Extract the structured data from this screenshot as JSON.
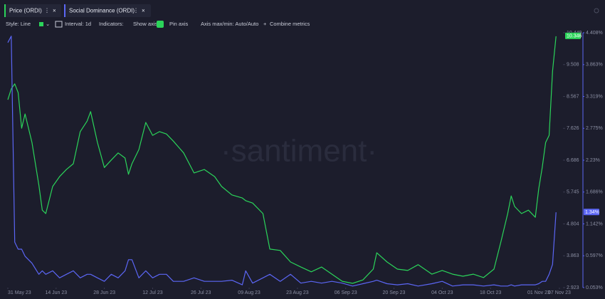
{
  "tabs": [
    "Price (ORDI)",
    "Social Dominance (ORDI)"
  ],
  "toolbar": {
    "style": "Style: Line",
    "interval": "Interval: 1d",
    "indicators": "Indicators:",
    "show_axis": "Show axis",
    "pin_axis": "Pin axis",
    "axis_maxmin": "Axis max/min: Auto/Auto",
    "combine": "Combine metrics"
  },
  "watermark": "·santiment·",
  "chart_data": {
    "type": "line",
    "x": [
      "31 May 23",
      "01 Jun 23",
      "02 Jun 23",
      "03 Jun 23",
      "04 Jun 23",
      "05 Jun 23",
      "07 Jun 23",
      "09 Jun 23",
      "10 Jun 23",
      "11 Jun 23",
      "13 Jun 23",
      "15 Jun 23",
      "17 Jun 23",
      "19 Jun 23",
      "21 Jun 23",
      "23 Jun 23",
      "24 Jun 23",
      "26 Jun 23",
      "28 Jun 23",
      "30 Jun 23",
      "02 Jul 23",
      "04 Jul 23",
      "05 Jul 23",
      "06 Jul 23",
      "08 Jul 23",
      "10 Jul 23",
      "12 Jul 23",
      "14 Jul 23",
      "16 Jul 23",
      "18 Jul 23",
      "21 Jul 23",
      "24 Jul 23",
      "27 Jul 23",
      "30 Jul 23",
      "01 Aug 23",
      "04 Aug 23",
      "07 Aug 23",
      "08 Aug 23",
      "10 Aug 23",
      "13 Aug 23",
      "15 Aug 23",
      "18 Aug 23",
      "21 Aug 23",
      "24 Aug 23",
      "27 Aug 23",
      "30 Aug 23",
      "02 Sep 23",
      "05 Sep 23",
      "08 Sep 23",
      "11 Sep 23",
      "14 Sep 23",
      "15 Sep 23",
      "18 Sep 23",
      "21 Sep 23",
      "24 Sep 23",
      "27 Sep 23",
      "01 Oct 23",
      "04 Oct 23",
      "07 Oct 23",
      "10 Oct 23",
      "13 Oct 23",
      "16 Oct 23",
      "19 Oct 23",
      "21 Oct 23",
      "23 Oct 23",
      "24 Oct 23",
      "25 Oct 23",
      "27 Oct 23",
      "29 Oct 23",
      "31 Oct 23",
      "01 Nov 23",
      "02 Nov 23",
      "03 Nov 23",
      "04 Nov 23",
      "05 Nov 23",
      "06 Nov 23"
    ],
    "series": [
      {
        "name": "Price (ORDI)",
        "color": "#2bd45a",
        "axis": "y",
        "values": [
          8.47,
          8.79,
          8.94,
          8.68,
          7.63,
          8.05,
          7.21,
          5.95,
          5.21,
          5.11,
          5.91,
          6.2,
          6.41,
          6.58,
          7.53,
          7.84,
          8.12,
          7.21,
          6.47,
          6.69,
          6.9,
          6.75,
          6.27,
          6.58,
          7.0,
          7.8,
          7.42,
          7.53,
          7.46,
          7.25,
          6.9,
          6.31,
          6.41,
          6.2,
          5.91,
          5.66,
          5.57,
          5.49,
          5.42,
          5.11,
          4.06,
          4.02,
          3.68,
          3.53,
          3.39,
          3.53,
          3.32,
          3.11,
          3.05,
          3.15,
          3.47,
          3.95,
          3.68,
          3.47,
          3.43,
          3.6,
          3.32,
          3.43,
          3.32,
          3.26,
          3.32,
          3.22,
          3.47,
          4.27,
          5.11,
          5.63,
          5.32,
          5.11,
          5.21,
          5.0,
          5.84,
          6.47,
          7.21,
          7.42,
          9.31,
          10.346
        ]
      },
      {
        "name": "Social Dominance (ORDI)",
        "color": "#5b66f5",
        "axis": "y2",
        "values": [
          4.24,
          4.35,
          0.83,
          0.71,
          0.71,
          0.59,
          0.47,
          0.28,
          0.34,
          0.28,
          0.34,
          0.22,
          0.28,
          0.34,
          0.22,
          0.28,
          0.28,
          0.22,
          0.16,
          0.28,
          0.22,
          0.34,
          0.53,
          0.53,
          0.22,
          0.34,
          0.22,
          0.28,
          0.28,
          0.16,
          0.16,
          0.22,
          0.16,
          0.16,
          0.16,
          0.18,
          0.1,
          0.34,
          0.13,
          0.22,
          0.28,
          0.16,
          0.28,
          0.13,
          0.16,
          0.13,
          0.16,
          0.13,
          0.08,
          0.12,
          0.16,
          0.18,
          0.12,
          0.1,
          0.12,
          0.08,
          0.12,
          0.16,
          0.08,
          0.1,
          0.1,
          0.08,
          0.1,
          0.08,
          0.08,
          0.1,
          0.08,
          0.1,
          0.1,
          0.1,
          0.12,
          0.16,
          0.16,
          0.28,
          0.45,
          1.34
        ],
        "value_labels": [
          null,
          null,
          null,
          null,
          null,
          null,
          null,
          null,
          null,
          null,
          null,
          null,
          null,
          null,
          null,
          null,
          null,
          null,
          null,
          null,
          null,
          null,
          null,
          null,
          null,
          null,
          null,
          null,
          null,
          null,
          null,
          null,
          null,
          null,
          null,
          null,
          null,
          null,
          null,
          null,
          null,
          null,
          null,
          null,
          null,
          null,
          null,
          null,
          null,
          null,
          null,
          null,
          null,
          null,
          null,
          null,
          null,
          null,
          null,
          null,
          null,
          null,
          null,
          null,
          null,
          null,
          null,
          null,
          null,
          null,
          null,
          null,
          null,
          null,
          null,
          "1.34%"
        ]
      }
    ],
    "xlim": [
      "31 May 23",
      "07 Nov 23"
    ],
    "xticks": [
      "31 May 23",
      "14 Jun 23",
      "28 Jun 23",
      "12 Jul 23",
      "26 Jul 23",
      "09 Aug 23",
      "23 Aug 23",
      "06 Sep 23",
      "20 Sep 23",
      "04 Oct 23",
      "18 Oct 23",
      "01 Nov 23",
      "07 Nov 23"
    ],
    "ylim": [
      2.923,
      10.449
    ],
    "yticks": [
      2.923,
      3.863,
      4.804,
      5.745,
      6.686,
      7.626,
      8.567,
      9.508,
      10.449
    ],
    "y2lim": [
      0.053,
      4.408
    ],
    "y2ticks": [
      {
        "value": 0.053,
        "label": "0.053%"
      },
      {
        "value": 0.597,
        "label": "0.597%"
      },
      {
        "value": 1.142,
        "label": "1.142%"
      },
      {
        "value": 1.686,
        "label": "1.686%"
      },
      {
        "value": 2.23,
        "label": "2.23%"
      },
      {
        "value": 2.775,
        "label": "2.775%"
      },
      {
        "value": 3.319,
        "label": "3.319%"
      },
      {
        "value": 3.863,
        "label": "3.863%"
      },
      {
        "value": 4.408,
        "label": "4.408%"
      }
    ]
  }
}
